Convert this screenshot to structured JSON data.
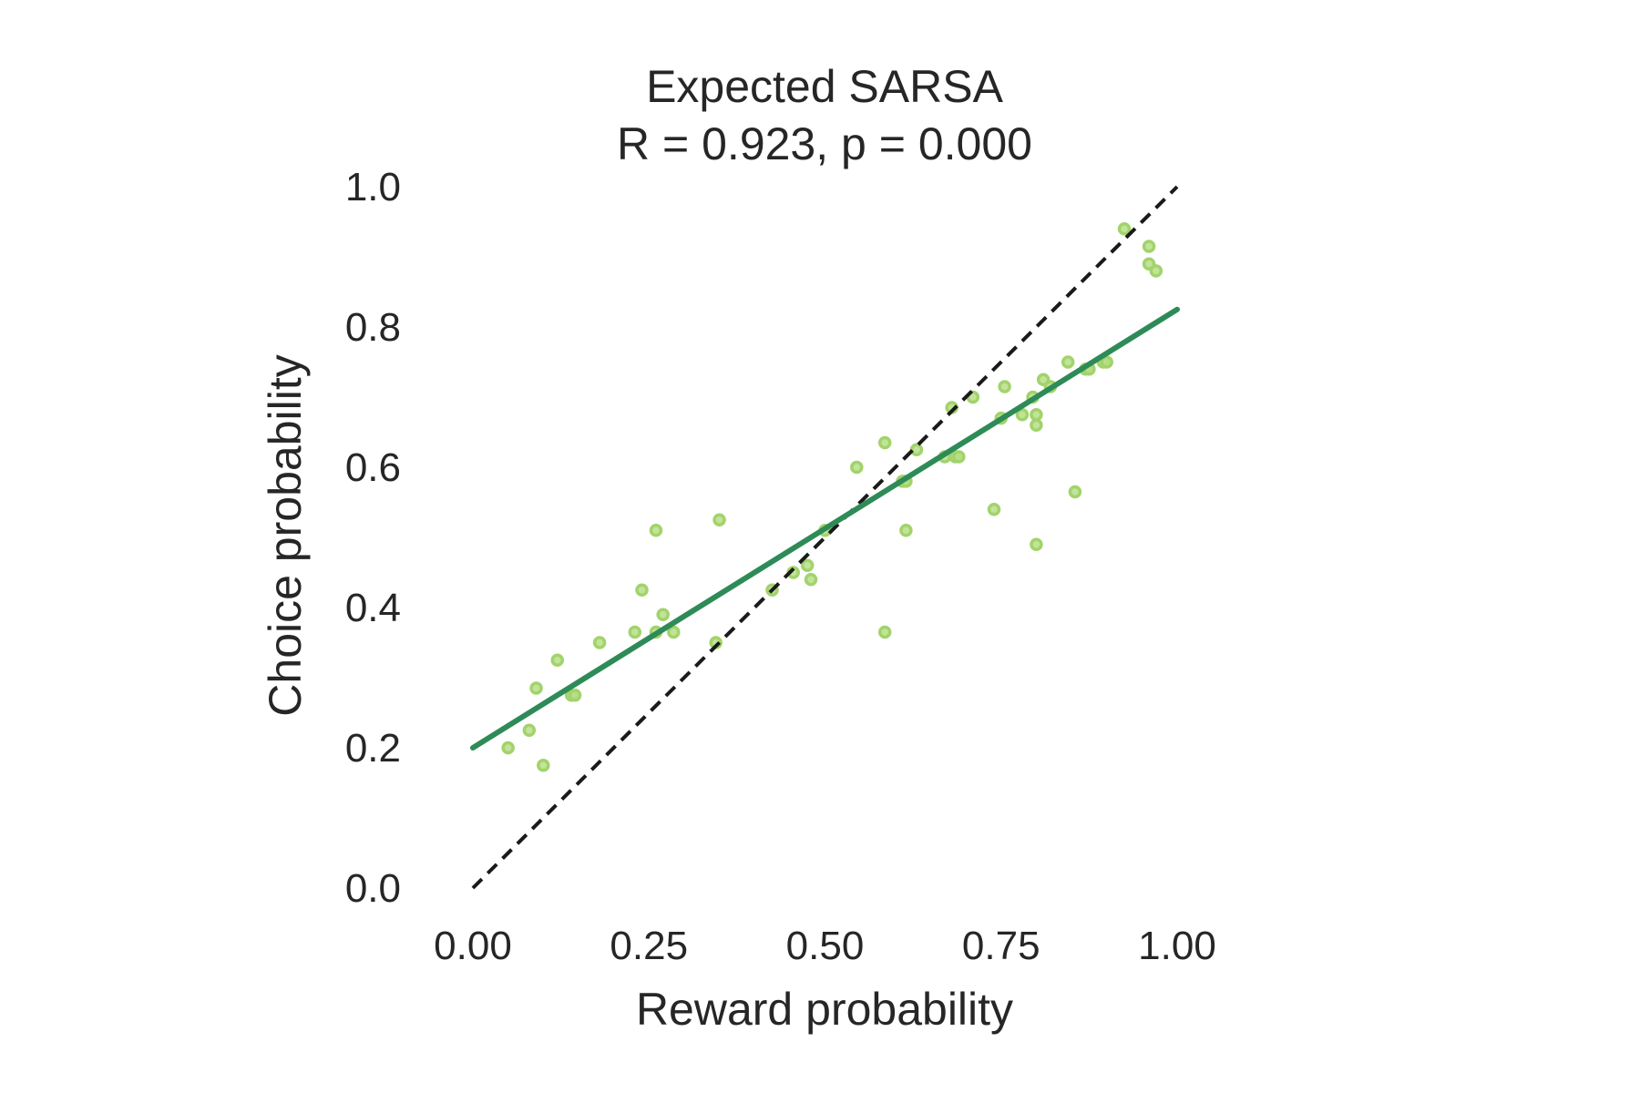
{
  "chart_data": {
    "type": "scatter",
    "title": "Expected SARSA",
    "subtitle": "R = 0.923, p = 0.000",
    "xlabel": "Reward probability",
    "ylabel": "Choice probability",
    "xlim": [
      0.0,
      1.0
    ],
    "ylim": [
      0.0,
      1.0
    ],
    "xticks": [
      "0.00",
      "0.25",
      "0.50",
      "0.75",
      "1.00"
    ],
    "yticks": [
      "0.0",
      "0.2",
      "0.4",
      "0.6",
      "0.8",
      "1.0"
    ],
    "grid": false,
    "legend": "none",
    "colors": {
      "points_fill": "#b7df86",
      "points_stroke": "#a2d36c",
      "fit_line": "#2e8b57",
      "identity_line": "#1a1a1a",
      "text": "#262626"
    },
    "series": [
      {
        "kind": "points",
        "points": [
          [
            0.05,
            0.2
          ],
          [
            0.08,
            0.225
          ],
          [
            0.09,
            0.285
          ],
          [
            0.1,
            0.175
          ],
          [
            0.12,
            0.325
          ],
          [
            0.14,
            0.275
          ],
          [
            0.145,
            0.275
          ],
          [
            0.18,
            0.35
          ],
          [
            0.23,
            0.365
          ],
          [
            0.24,
            0.425
          ],
          [
            0.26,
            0.51
          ],
          [
            0.26,
            0.365
          ],
          [
            0.27,
            0.39
          ],
          [
            0.285,
            0.365
          ],
          [
            0.35,
            0.525
          ],
          [
            0.345,
            0.35
          ],
          [
            0.425,
            0.425
          ],
          [
            0.455,
            0.45
          ],
          [
            0.475,
            0.46
          ],
          [
            0.48,
            0.44
          ],
          [
            0.5,
            0.51
          ],
          [
            0.545,
            0.6
          ],
          [
            0.585,
            0.635
          ],
          [
            0.585,
            0.365
          ],
          [
            0.61,
            0.58
          ],
          [
            0.615,
            0.51
          ],
          [
            0.615,
            0.58
          ],
          [
            0.63,
            0.625
          ],
          [
            0.67,
            0.615
          ],
          [
            0.68,
            0.685
          ],
          [
            0.685,
            0.615
          ],
          [
            0.69,
            0.615
          ],
          [
            0.71,
            0.7
          ],
          [
            0.74,
            0.54
          ],
          [
            0.75,
            0.67
          ],
          [
            0.755,
            0.715
          ],
          [
            0.78,
            0.675
          ],
          [
            0.795,
            0.7
          ],
          [
            0.8,
            0.675
          ],
          [
            0.8,
            0.66
          ],
          [
            0.8,
            0.49
          ],
          [
            0.81,
            0.725
          ],
          [
            0.82,
            0.715
          ],
          [
            0.845,
            0.75
          ],
          [
            0.855,
            0.565
          ],
          [
            0.87,
            0.74
          ],
          [
            0.875,
            0.74
          ],
          [
            0.895,
            0.75
          ],
          [
            0.9,
            0.75
          ],
          [
            0.925,
            0.94
          ],
          [
            0.96,
            0.915
          ],
          [
            0.96,
            0.89
          ],
          [
            0.97,
            0.88
          ]
        ]
      },
      {
        "kind": "fit-line",
        "x": [
          0.0,
          1.0
        ],
        "y": [
          0.2,
          0.825
        ]
      },
      {
        "kind": "identity-line",
        "x": [
          0.0,
          1.0
        ],
        "y": [
          0.0,
          1.0
        ]
      }
    ]
  }
}
